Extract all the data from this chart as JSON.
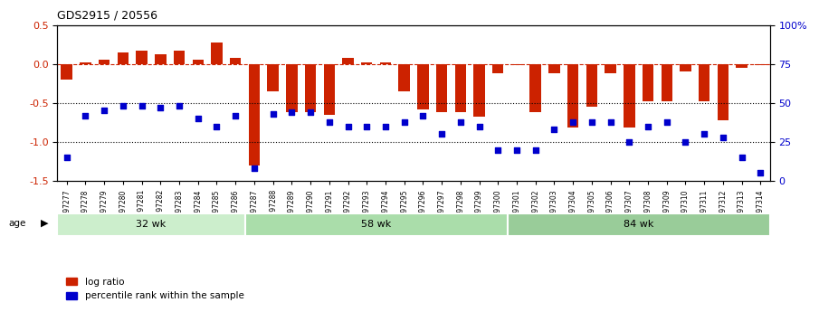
{
  "title": "GDS2915 / 20556",
  "samples": [
    "GSM97277",
    "GSM97278",
    "GSM97279",
    "GSM97280",
    "GSM97281",
    "GSM97282",
    "GSM97283",
    "GSM97284",
    "GSM97285",
    "GSM97286",
    "GSM97287",
    "GSM97288",
    "GSM97289",
    "GSM97290",
    "GSM97291",
    "GSM97292",
    "GSM97293",
    "GSM97294",
    "GSM97295",
    "GSM97296",
    "GSM97297",
    "GSM97298",
    "GSM97299",
    "GSM97300",
    "GSM97301",
    "GSM97302",
    "GSM97303",
    "GSM97304",
    "GSM97305",
    "GSM97306",
    "GSM97307",
    "GSM97308",
    "GSM97309",
    "GSM97310",
    "GSM97311",
    "GSM97312",
    "GSM97313",
    "GSM97314"
  ],
  "log_ratio": [
    -0.2,
    0.02,
    0.05,
    0.15,
    0.17,
    0.12,
    0.17,
    0.05,
    0.27,
    0.08,
    -1.3,
    -0.35,
    -0.62,
    -0.62,
    -0.65,
    0.08,
    0.02,
    0.02,
    -0.35,
    -0.58,
    -0.62,
    -0.62,
    -0.68,
    -0.12,
    -0.02,
    -0.62,
    -0.12,
    -0.82,
    -0.55,
    -0.12,
    -0.82,
    -0.48,
    -0.48,
    -0.1,
    -0.48,
    -0.72,
    -0.05,
    -0.02
  ],
  "percentile": [
    15,
    42,
    45,
    48,
    48,
    47,
    48,
    40,
    35,
    42,
    8,
    43,
    44,
    44,
    38,
    35,
    35,
    35,
    38,
    42,
    30,
    38,
    35,
    20,
    20,
    20,
    33,
    38,
    38,
    38,
    25,
    35,
    38,
    25,
    30,
    28,
    15,
    5
  ],
  "groups": [
    {
      "label": "32 wk",
      "start": 0,
      "end": 10,
      "color": "#ccffcc"
    },
    {
      "label": "58 wk",
      "start": 10,
      "end": 24,
      "color": "#99ee99"
    },
    {
      "label": "84 wk",
      "start": 24,
      "end": 38,
      "color": "#88dd88"
    }
  ],
  "ylim": [
    -1.5,
    0.5
  ],
  "yticks_left": [
    -1.5,
    -1.0,
    -0.5,
    0.0,
    0.5
  ],
  "yticks_right": [
    0,
    25,
    50,
    75,
    100
  ],
  "bar_color": "#cc2200",
  "dot_color": "#0000cc",
  "hline_color": "#cc2200",
  "dotline_color": "#000088",
  "background_color": "#f5f5f5"
}
